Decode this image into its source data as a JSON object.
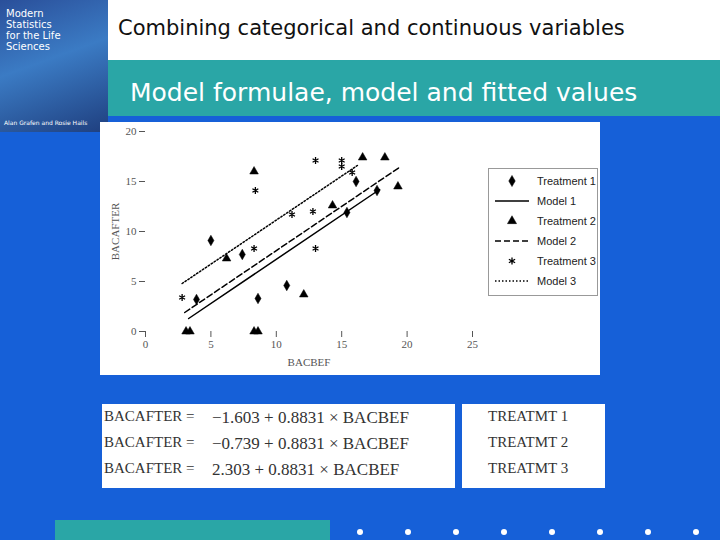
{
  "slide": {
    "title": "Combining categorical and continuous variables",
    "subtitle": "Model formulae, model and fitted values",
    "book": {
      "title": "Modern Statistics for the Life Sciences",
      "authors": "Alan Grafen and Rosie Hails"
    },
    "equations": [
      {
        "lhs": "BACAFTER =",
        "rhs": "−1.603 + 0.8831 × BACBEF",
        "group": "TREATMT 1"
      },
      {
        "lhs": "BACAFTER =",
        "rhs": "−0.739 + 0.8831 × BACBEF",
        "group": "TREATMT 2"
      },
      {
        "lhs": "BACAFTER =",
        "rhs": "2.303 + 0.8831 × BACBEF",
        "group": "TREATMT 3"
      }
    ]
  },
  "chart_data": {
    "type": "scatter",
    "x_label": "BACBEF",
    "y_label": "BACAFTER",
    "xlim": [
      0,
      25
    ],
    "xticks": [
      0,
      5,
      10,
      15,
      20,
      25
    ],
    "ylim": [
      0,
      20
    ],
    "yticks": [
      0,
      5,
      10,
      15,
      20
    ],
    "legend": "right",
    "series": [
      {
        "name": "Treatment 1",
        "type": "scatter",
        "marker": "diamond",
        "color": "#000000",
        "x": [
          3.9,
          5.0,
          7.4,
          8.6,
          10.8,
          15.4,
          16.1,
          17.7
        ],
        "values": [
          3.2,
          9.1,
          7.7,
          3.3,
          4.6,
          11.9,
          15.0,
          14.1
        ]
      },
      {
        "name": "Model 1",
        "type": "line",
        "line_style": "solid",
        "color": "#000000",
        "x": [
          3.3,
          17.9
        ],
        "values": [
          1.3,
          14.2
        ]
      },
      {
        "name": "Treatment 2",
        "type": "scatter",
        "marker": "triangle",
        "color": "#000000",
        "x": [
          3.1,
          3.4,
          6.2,
          8.3,
          8.3,
          8.6,
          12.1,
          14.3,
          16.6,
          18.3,
          19.3
        ],
        "values": [
          0,
          0,
          7.3,
          16.0,
          0,
          0,
          3.7,
          12.6,
          17.4,
          17.4,
          14.5
        ]
      },
      {
        "name": "Model 2",
        "type": "line",
        "line_style": "dashed",
        "color": "#000000",
        "x": [
          3.0,
          19.4
        ],
        "values": [
          1.9,
          16.4
        ]
      },
      {
        "name": "Treatment 3",
        "type": "scatter",
        "marker": "asterisk",
        "color": "#000000",
        "x": [
          2.8,
          8.3,
          8.4,
          11.2,
          12.8,
          13.0,
          13.0,
          15.0,
          15.0,
          15.8
        ],
        "values": [
          3.4,
          8.3,
          14.1,
          11.7,
          12.0,
          8.3,
          17.1,
          17.1,
          16.5,
          15.9
        ]
      },
      {
        "name": "Model 3",
        "type": "line",
        "line_style": "dotted",
        "color": "#000000",
        "x": [
          2.8,
          16.2
        ],
        "values": [
          4.8,
          16.6
        ]
      }
    ]
  }
}
